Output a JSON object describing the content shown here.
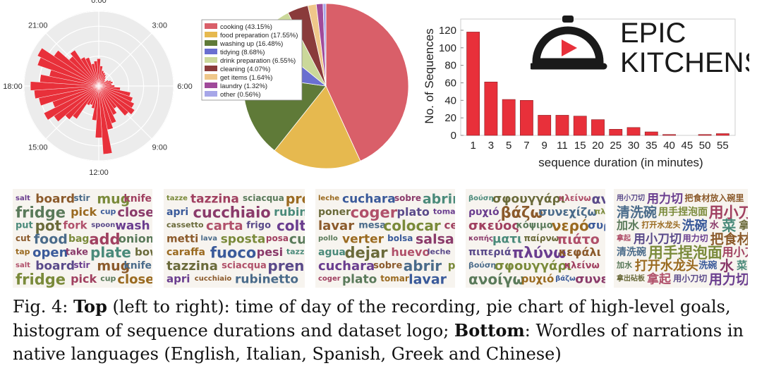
{
  "chart_data": [
    {
      "type": "polar-bar",
      "tick_labels": [
        "0:00",
        "3:00",
        "6:00",
        "9:00",
        "12:00",
        "15:00",
        "18:00",
        "21:00"
      ],
      "values": [
        0.38,
        0.28,
        0.22,
        0.2,
        0.18,
        0.15,
        0.12,
        0.1,
        0.15,
        0.18,
        0.2,
        0.18,
        0.22,
        0.3,
        0.45,
        0.5,
        0.55,
        0.6,
        0.55,
        0.38,
        0.45,
        0.55,
        0.62,
        0.95,
        0.72,
        0.48,
        0.32,
        0.28,
        0.3,
        0.55,
        0.62,
        0.75,
        0.85,
        0.68,
        0.85,
        0.9,
        0.95,
        0.82,
        0.7,
        0.9,
        0.95,
        0.75,
        0.55,
        0.6,
        0.45,
        0.42,
        0.32,
        0.35
      ],
      "color": "#e8303a"
    },
    {
      "type": "pie",
      "slices": [
        {
          "label": "cooking (43.15%)",
          "value": 43.15,
          "color": "#d95f69"
        },
        {
          "label": "food preparation (17.55%)",
          "value": 17.55,
          "color": "#e6b94f"
        },
        {
          "label": "washing up (16.48%)",
          "value": 16.48,
          "color": "#5f7a38"
        },
        {
          "label": "tidying (8.68%)",
          "value": 8.68,
          "color": "#6a6fd0"
        },
        {
          "label": "drink preparation (6.55%)",
          "value": 6.55,
          "color": "#cbd89a"
        },
        {
          "label": "cleaning (4.07%)",
          "value": 4.07,
          "color": "#8a3b3b"
        },
        {
          "label": "get items (1.64%)",
          "value": 1.64,
          "color": "#efc78a"
        },
        {
          "label": "laundry (1.32%)",
          "value": 1.32,
          "color": "#a04a9a"
        },
        {
          "label": "other (0.56%)",
          "value": 0.56,
          "color": "#a6a6e8"
        }
      ]
    },
    {
      "type": "bar",
      "categories": [
        "1",
        "3",
        "5",
        "7",
        "9",
        "11",
        "15",
        "20",
        "25",
        "30",
        "35",
        "40",
        "45",
        "50",
        "55"
      ],
      "values": [
        118,
        61,
        41,
        40,
        23,
        23,
        22,
        18,
        7,
        9,
        4,
        1,
        0,
        1,
        2
      ],
      "xlabel": "sequence duration (in minutes)",
      "ylabel": "No. of Sequences",
      "yticks": [
        0,
        20,
        40,
        60,
        80,
        100,
        120
      ],
      "ylim": [
        0,
        128
      ],
      "color": "#e8303a"
    }
  ],
  "logo": {
    "line1": "EPIC",
    "line2": "KITCHENS",
    "color": "#1a1a1a",
    "accent": "#e8303a"
  },
  "wordles": [
    {
      "words": [
        "salt",
        "board",
        "stir",
        "mug",
        "knife",
        "fridge",
        "pick",
        "cup",
        "close",
        "put",
        "pot",
        "fork",
        "spoon",
        "wash",
        "cut",
        "food",
        "bag",
        "add",
        "onion",
        "tap",
        "open",
        "take",
        "plate",
        "bowl"
      ]
    },
    {
      "words": [
        "tazze",
        "tazzina",
        "sciacqua",
        "prendi",
        "apri",
        "cucchiaio",
        "rubinetto",
        "cassetto",
        "carta",
        "frigo",
        "coltello",
        "metti",
        "lava",
        "sposta",
        "posa",
        "cucina",
        "caraffa",
        "fuoco",
        "pesi"
      ]
    },
    {
      "words": [
        "leche",
        "cuchara",
        "sobre",
        "abrir",
        "poner",
        "coger",
        "plato",
        "tomar",
        "lavar",
        "mesa",
        "colocar",
        "cerrar",
        "pollo",
        "verter",
        "bolsa",
        "salsa",
        "agua",
        "dejar",
        "huevo"
      ]
    },
    {
      "words": [
        "βούση",
        "σφουγγάρι",
        "κλείνω",
        "ανοίγω",
        "ρυχιό",
        "βάζω",
        "συνεχίζω",
        "πλένω",
        "σκεύος",
        "κόψιμο",
        "νερό",
        "συρτάρι",
        "κοπής",
        "ματι",
        "παίρνω",
        "πιάτο",
        "πιπεριά",
        "πλύνω",
        "κεφάλι"
      ]
    },
    {
      "words": [
        "用小刀切",
        "用力切",
        "把食材放入碗里",
        "清洗碗",
        "用手捏泡面",
        "用小刀切蔬菜",
        "加水",
        "打开水龙头",
        "洗碗",
        "水",
        "菜",
        "拿出砧板",
        "拿起"
      ]
    }
  ],
  "caption": {
    "fig": "Fig. 4:",
    "top_label": "Top",
    "top_text": " (left to right): time of day of the recording, pie chart of high-level goals, histogram of sequence durations and dataset logo; ",
    "bottom_label": "Bottom",
    "bottom_text": ": Wordles of narrations in native languages (English, Italian, Spanish, Greek and Chinese)"
  }
}
